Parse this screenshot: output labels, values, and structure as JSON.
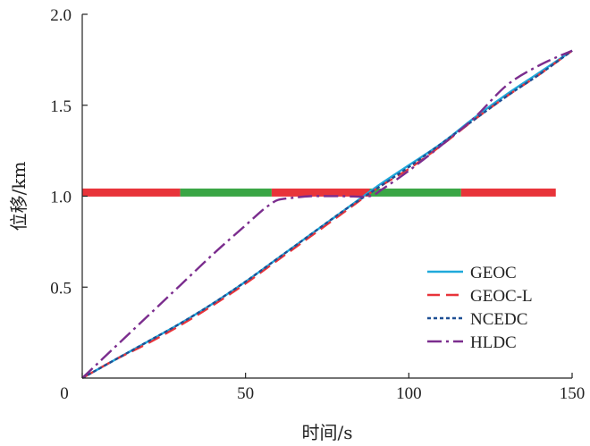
{
  "chart_data": {
    "type": "line",
    "xlabel": "时间/s",
    "ylabel": "位移/km",
    "xlim": [
      0,
      150
    ],
    "ylim": [
      0,
      2.0
    ],
    "x_ticks": [
      0,
      50,
      100,
      150
    ],
    "x_tick_labels": [
      "0",
      "50",
      "100",
      "150"
    ],
    "y_ticks": [
      0,
      0.5,
      1.0,
      1.5,
      2.0
    ],
    "y_tick_labels": [
      "0",
      "0.5",
      "1.0",
      "1.5",
      "2.0"
    ],
    "grid": false,
    "legend_position": "bottom-right",
    "signal_bar": {
      "y": 1.02,
      "segments": [
        {
          "x0": 0,
          "x1": 30,
          "state": "red",
          "color": "#e8343a"
        },
        {
          "x0": 30,
          "x1": 58,
          "state": "green",
          "color": "#3aa645"
        },
        {
          "x0": 58,
          "x1": 88,
          "state": "red",
          "color": "#e8343a"
        },
        {
          "x0": 88,
          "x1": 116,
          "state": "green",
          "color": "#3aa645"
        },
        {
          "x0": 116,
          "x1": 145,
          "state": "red",
          "color": "#e8343a"
        }
      ]
    },
    "series": [
      {
        "name": "GEOC",
        "color": "#1fa9db",
        "dash": "solid",
        "points": [
          [
            0,
            0
          ],
          [
            10,
            0.1
          ],
          [
            20,
            0.2
          ],
          [
            30,
            0.3
          ],
          [
            40,
            0.41
          ],
          [
            50,
            0.53
          ],
          [
            60,
            0.66
          ],
          [
            70,
            0.79
          ],
          [
            80,
            0.92
          ],
          [
            90,
            1.05
          ],
          [
            100,
            1.17
          ],
          [
            110,
            1.29
          ],
          [
            120,
            1.43
          ],
          [
            130,
            1.56
          ],
          [
            140,
            1.68
          ],
          [
            150,
            1.8
          ]
        ]
      },
      {
        "name": "GEOC-L",
        "color": "#e8343a",
        "dash": "longdash",
        "points": [
          [
            0,
            0
          ],
          [
            10,
            0.1
          ],
          [
            20,
            0.19
          ],
          [
            30,
            0.29
          ],
          [
            40,
            0.4
          ],
          [
            50,
            0.52
          ],
          [
            60,
            0.65
          ],
          [
            70,
            0.78
          ],
          [
            80,
            0.91
          ],
          [
            90,
            1.04
          ],
          [
            100,
            1.15
          ],
          [
            110,
            1.28
          ],
          [
            120,
            1.42
          ],
          [
            130,
            1.55
          ],
          [
            140,
            1.67
          ],
          [
            150,
            1.8
          ]
        ]
      },
      {
        "name": "NCEDC",
        "color": "#1e4f94",
        "dash": "dotted",
        "points": [
          [
            0,
            0
          ],
          [
            10,
            0.1
          ],
          [
            20,
            0.2
          ],
          [
            30,
            0.3
          ],
          [
            40,
            0.41
          ],
          [
            50,
            0.53
          ],
          [
            60,
            0.66
          ],
          [
            70,
            0.79
          ],
          [
            80,
            0.92
          ],
          [
            90,
            1.04
          ],
          [
            100,
            1.16
          ],
          [
            110,
            1.29
          ],
          [
            120,
            1.42
          ],
          [
            130,
            1.55
          ],
          [
            140,
            1.67
          ],
          [
            150,
            1.8
          ]
        ]
      },
      {
        "name": "HLDC",
        "color": "#7b2d8e",
        "dash": "dashdot",
        "points": [
          [
            0,
            0
          ],
          [
            10,
            0.17
          ],
          [
            20,
            0.34
          ],
          [
            30,
            0.51
          ],
          [
            40,
            0.68
          ],
          [
            50,
            0.84
          ],
          [
            55,
            0.92
          ],
          [
            58,
            0.96
          ],
          [
            60,
            0.98
          ],
          [
            64,
            0.99
          ],
          [
            70,
            1.0
          ],
          [
            80,
            1.0
          ],
          [
            88,
            1.0
          ],
          [
            92,
            1.04
          ],
          [
            100,
            1.14
          ],
          [
            110,
            1.28
          ],
          [
            120,
            1.43
          ],
          [
            130,
            1.61
          ],
          [
            140,
            1.72
          ],
          [
            150,
            1.8
          ]
        ]
      }
    ]
  }
}
